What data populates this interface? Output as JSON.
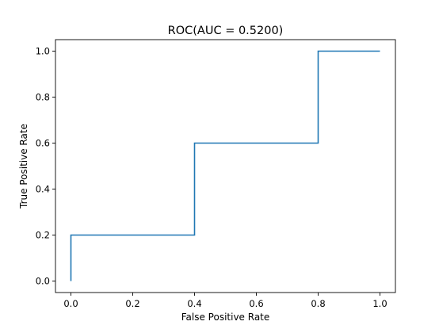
{
  "chart_data": {
    "type": "line",
    "title": "ROC(AUC = 0.5200)",
    "xlabel": "False Positive Rate",
    "ylabel": "True Positive Rate",
    "xlim": [
      -0.05,
      1.05
    ],
    "ylim": [
      -0.05,
      1.05
    ],
    "xticks": [
      0.0,
      0.2,
      0.4,
      0.6,
      0.8,
      1.0
    ],
    "xtick_labels": [
      "0.0",
      "0.2",
      "0.4",
      "0.6",
      "0.8",
      "1.0"
    ],
    "yticks": [
      0.0,
      0.2,
      0.4,
      0.6,
      0.8,
      1.0
    ],
    "ytick_labels": [
      "0.0",
      "0.2",
      "0.4",
      "0.6",
      "0.8",
      "1.0"
    ],
    "grid": false,
    "series": [
      {
        "x": [
          0.0,
          0.0,
          0.4,
          0.4,
          0.8,
          0.8,
          1.0
        ],
        "y": [
          0.0,
          0.2,
          0.2,
          0.6,
          0.6,
          1.0,
          1.0
        ],
        "color": "#1f77b4"
      }
    ]
  }
}
